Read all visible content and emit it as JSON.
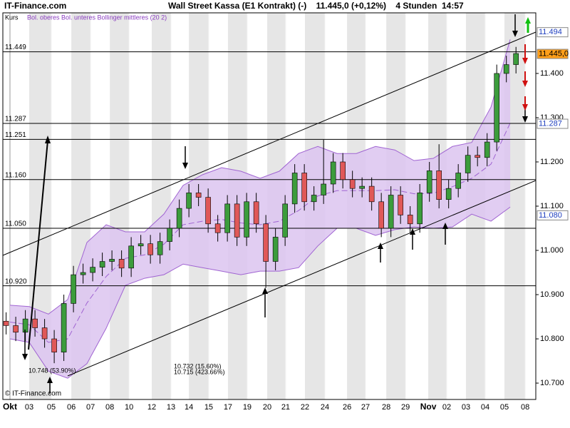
{
  "chart_data": {
    "type": "candlestick",
    "site": "IT-Finance.com",
    "title": "Wall Street Kassa (E1 Kontrakt) (-)    11.445,0 (+0,12%)    4 Stunden  14:57",
    "legend": [
      "Kurs",
      "Bol. oberes Bol. unteres Bollinger mittleres (20 2)"
    ],
    "copyright": "© IT-Finance.com",
    "xlim": [
      -0.37,
      27.33
    ],
    "ylim": [
      10663,
      11537
    ],
    "xticks": [
      {
        "value": 0,
        "label": "Okt"
      },
      {
        "value": 1.0,
        "label": "03"
      },
      {
        "value": 2.15,
        "label": "05"
      },
      {
        "value": 3.19,
        "label": "06"
      },
      {
        "value": 4.19,
        "label": "07"
      },
      {
        "value": 5.19,
        "label": "08"
      },
      {
        "value": 6.19,
        "label": "10"
      },
      {
        "value": 7.37,
        "label": "12"
      },
      {
        "value": 8.37,
        "label": "13"
      },
      {
        "value": 9.3,
        "label": "14"
      },
      {
        "value": 10.33,
        "label": "15"
      },
      {
        "value": 11.33,
        "label": "17"
      },
      {
        "value": 12.33,
        "label": "19"
      },
      {
        "value": 13.37,
        "label": "20"
      },
      {
        "value": 14.33,
        "label": "21"
      },
      {
        "value": 15.33,
        "label": "22"
      },
      {
        "value": 16.37,
        "label": "24"
      },
      {
        "value": 17.52,
        "label": "26"
      },
      {
        "value": 18.48,
        "label": "27"
      },
      {
        "value": 19.56,
        "label": "28"
      },
      {
        "value": 20.56,
        "label": "29"
      },
      {
        "value": 21.74,
        "label": "Nov"
      },
      {
        "value": 22.7,
        "label": "02"
      },
      {
        "value": 23.7,
        "label": "03"
      },
      {
        "value": 24.7,
        "label": "04"
      },
      {
        "value": 25.7,
        "label": "05"
      },
      {
        "value": 26.78,
        "label": "08"
      }
    ],
    "yticks": [
      {
        "value": 10700,
        "label": "10.700"
      },
      {
        "value": 10800,
        "label": "10.800"
      },
      {
        "value": 10900,
        "label": "10.900"
      },
      {
        "value": 11000,
        "label": "11.000"
      },
      {
        "value": 11100,
        "label": "11.100"
      },
      {
        "value": 11200,
        "label": "11.200"
      },
      {
        "value": 11300,
        "label": "11.300"
      },
      {
        "value": 11400,
        "label": "11.400"
      }
    ],
    "hlines": [
      {
        "value": 11449,
        "label": "11.449"
      },
      {
        "value": 11287,
        "label": "11.287"
      },
      {
        "value": 11251,
        "label": "11.251"
      },
      {
        "value": 11160,
        "label": "11.160"
      },
      {
        "value": 11050,
        "label": "11.050"
      },
      {
        "value": 10920,
        "label": "10.920"
      }
    ],
    "price_boxes": [
      {
        "value": 11494,
        "label": "11.494",
        "color": "#ffffff",
        "text_color": "#1f3fbf"
      },
      {
        "value": 11445,
        "label": "11.445,0",
        "color": "#ff9f1a",
        "text_color": "#000000"
      },
      {
        "value": 11287,
        "label": "11.287",
        "color": "#ffffff",
        "text_color": "#1f3fbf"
      },
      {
        "value": 11080,
        "label": "11.080",
        "color": "#ffffff",
        "text_color": "#1f3fbf"
      }
    ],
    "annotations": [
      "10.748 (53.90%)",
      "10.732 (15.60%)",
      "10.715 (423.66%)"
    ],
    "up_color": "#3c9c3c",
    "down_color": "#e05858",
    "band_fill": "#dcc4f0",
    "band_color": "#a064d2",
    "x": [
      -0.2,
      0.3,
      0.8,
      1.3,
      1.8,
      2.3,
      2.8,
      3.3,
      3.8,
      4.3,
      4.8,
      5.3,
      5.8,
      6.3,
      6.8,
      7.3,
      7.8,
      8.3,
      8.8,
      9.3,
      9.8,
      10.3,
      10.8,
      11.3,
      11.8,
      12.3,
      12.8,
      13.3,
      13.8,
      14.3,
      14.8,
      15.3,
      15.8,
      16.3,
      16.8,
      17.3,
      17.8,
      18.3,
      18.8,
      19.3,
      19.8,
      20.3,
      20.8,
      21.3,
      21.8,
      22.3,
      22.8,
      23.3,
      23.8,
      24.3,
      24.8,
      25.3,
      25.8,
      26.3
    ],
    "open": [
      10840,
      10830,
      10815,
      10845,
      10825,
      10800,
      10770,
      10880,
      10945,
      10950,
      10962,
      10975,
      10980,
      10960,
      11010,
      11015,
      10990,
      11020,
      11050,
      11095,
      11130,
      11120,
      11060,
      11040,
      11105,
      11030,
      11110,
      11060,
      10975,
      11030,
      11105,
      11175,
      11110,
      11125,
      11150,
      11200,
      11160,
      11140,
      11145,
      11110,
      11050,
      11125,
      11080,
      11060,
      11130,
      11180,
      11115,
      11140,
      11175,
      11215,
      11210,
      11245,
      11400,
      11420
    ],
    "high": [
      10860,
      10850,
      10865,
      10865,
      10845,
      10820,
      10900,
      10965,
      10970,
      10982,
      10995,
      11000,
      11000,
      11030,
      11035,
      11035,
      11040,
      11070,
      11115,
      11150,
      11150,
      11140,
      11080,
      11125,
      11125,
      11130,
      11130,
      11080,
      11050,
      11125,
      11195,
      11195,
      11145,
      11250,
      11220,
      11220,
      11180,
      11165,
      11165,
      11130,
      11145,
      11145,
      11100,
      11150,
      11200,
      11240,
      11160,
      11195,
      11235,
      11235,
      11265,
      11420,
      11440,
      11460
    ],
    "low": [
      10810,
      10795,
      10795,
      10805,
      10780,
      10745,
      10750,
      10860,
      10925,
      10930,
      10942,
      10955,
      10940,
      10940,
      10990,
      10970,
      10970,
      11000,
      11030,
      11075,
      11100,
      11040,
      11020,
      11020,
      11010,
      11010,
      11040,
      10915,
      10955,
      11010,
      11085,
      11090,
      11090,
      11105,
      11130,
      11140,
      11120,
      11120,
      11090,
      11030,
      11030,
      11060,
      11040,
      11040,
      11110,
      11095,
      11095,
      11120,
      11155,
      11190,
      11190,
      11225,
      11380,
      11400
    ],
    "close": [
      10830,
      10815,
      10845,
      10825,
      10800,
      10770,
      10880,
      10945,
      10950,
      10962,
      10975,
      10980,
      10960,
      11010,
      11015,
      10990,
      11020,
      11050,
      11095,
      11130,
      11120,
      11060,
      11040,
      11105,
      11030,
      11110,
      11060,
      10975,
      11030,
      11105,
      11175,
      11110,
      11125,
      11150,
      11200,
      11160,
      11140,
      11145,
      11110,
      11050,
      11125,
      11080,
      11060,
      11130,
      11180,
      11115,
      11140,
      11175,
      11215,
      11210,
      11245,
      11400,
      11420,
      11445
    ],
    "band_x": [
      0,
      1,
      2,
      3,
      4,
      5,
      6,
      7,
      8,
      9,
      10,
      11,
      12,
      13,
      14,
      15,
      16,
      17,
      18,
      19,
      20,
      21,
      22,
      23,
      24,
      25,
      26
    ],
    "band_upper": [
      10876,
      10873,
      10856,
      10889,
      11018,
      11058,
      11042,
      11042,
      11082,
      11147,
      11171,
      11187,
      11179,
      11163,
      11179,
      11219,
      11235,
      11219,
      11219,
      11235,
      11227,
      11203,
      11208,
      11235,
      11244,
      11324,
      11477
    ],
    "band_lower": [
      10800,
      10792,
      10727,
      10711,
      10744,
      10824,
      10921,
      10937,
      10945,
      10969,
      10961,
      10953,
      10945,
      10953,
      10953,
      10961,
      11010,
      11050,
      11050,
      11034,
      11047,
      11053,
      11050,
      11053,
      11082,
      11066,
      11098
    ],
    "band_middle": [
      10838,
      10832,
      10792,
      10800,
      10881,
      10941,
      10982,
      10990,
      11014,
      11058,
      11066,
      11070,
      11062,
      11058,
      11066,
      11090,
      11123,
      11135,
      11135,
      11135,
      11137,
      11128,
      11129,
      11144,
      11163,
      11195,
      11288
    ]
  }
}
